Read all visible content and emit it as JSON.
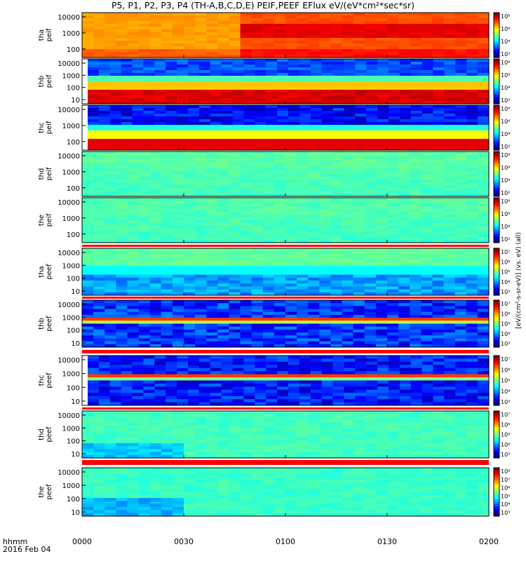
{
  "title": "P5, P1, P2, P3, P4 (TH-A,B,C,D,E) PEIF,PEEF EFlux eV/(eV*cm²*sec*sr)",
  "time_axis": {
    "label_line1": "hhmm",
    "label_line2": "2016 Feb 04",
    "ticks": [
      "0000",
      "0030",
      "0100",
      "0130",
      "0200"
    ]
  },
  "colorbar_caption": "[eV/(cm²-s-sr-eV)] (vs. eV) (all)",
  "chart_data": [
    {
      "type": "heatmap",
      "probe": "tha",
      "product": "peif",
      "ylabel": "tha\npeif",
      "y_ticks": [
        "10000",
        "1000",
        "100"
      ],
      "cbar_ticks": [
        "10⁸",
        "10⁶",
        "10⁴",
        "10²"
      ],
      "colormap_feature": "high flux (yellow-orange) until ~0045, then orange-red band centered near 1000 eV",
      "left_gap": false
    },
    {
      "type": "heatmap",
      "probe": "thb",
      "product": "peif",
      "ylabel": "thb\npeif",
      "y_ticks": [
        "10000",
        "1000",
        "100",
        "10"
      ],
      "cbar_ticks": [
        "10⁸",
        "10⁶",
        "10⁴",
        "10²"
      ],
      "colormap_feature": "blue above 2000 eV, yellow-red band below 1000 eV",
      "left_gap": true
    },
    {
      "type": "heatmap",
      "probe": "thc",
      "product": "peif",
      "ylabel": "thc\npeif",
      "y_ticks": [
        "10000",
        "1000",
        "100"
      ],
      "cbar_ticks": [
        "10⁸",
        "10⁶",
        "10⁴",
        "10²"
      ],
      "colormap_feature": "blue/black above 2000 eV, red below 300 eV",
      "left_gap": true
    },
    {
      "type": "heatmap",
      "probe": "thd",
      "product": "peif",
      "ylabel": "thd\npeif",
      "y_ticks": [
        "10000",
        "1000",
        "100"
      ],
      "cbar_ticks": [
        "10⁸",
        "10⁶",
        "10⁴",
        "10²"
      ],
      "colormap_feature": "uniform green",
      "left_gap": false
    },
    {
      "type": "heatmap",
      "probe": "the",
      "product": "peif",
      "ylabel": "the\npeif",
      "y_ticks": [
        "10000",
        "1000",
        "100"
      ],
      "cbar_ticks": [
        "10⁸",
        "10⁶",
        "10⁴",
        "10²"
      ],
      "colormap_feature": "uniform green",
      "left_gap": false
    },
    {
      "type": "heatmap",
      "probe": "tha",
      "product": "peef",
      "ylabel": "tha\npeef",
      "y_ticks": [
        "10000",
        "1000",
        "100",
        "10"
      ],
      "cbar_ticks": [
        "10⁷",
        "10⁶",
        "10⁵",
        "10⁴",
        "10³"
      ],
      "colormap_feature": "green above 300 eV, blue below",
      "left_gap": false
    },
    {
      "type": "heatmap",
      "probe": "thb",
      "product": "peef",
      "ylabel": "thb\npeef",
      "y_ticks": [
        "10000",
        "1000",
        "100",
        "10"
      ],
      "cbar_ticks": [
        "10⁷",
        "10⁶",
        "10⁵",
        "10⁴",
        "10³"
      ],
      "colormap_feature": "purple/blue with orange-red line near 800 eV",
      "left_gap": false
    },
    {
      "type": "heatmap",
      "probe": "thc",
      "product": "peef",
      "ylabel": "thc\npeef",
      "y_ticks": [
        "10000",
        "1000",
        "100",
        "10"
      ],
      "cbar_ticks": [
        "10⁷",
        "10⁶",
        "10⁵",
        "10⁴",
        "10³"
      ],
      "colormap_feature": "purple/blue with orange-red line near 800 eV",
      "left_gap": true
    },
    {
      "type": "heatmap",
      "probe": "thd",
      "product": "peef",
      "ylabel": "thd\npeef",
      "y_ticks": [
        "10000",
        "1000",
        "100",
        "10"
      ],
      "cbar_ticks": [
        "10⁷",
        "10⁶",
        "10⁵",
        "10⁴",
        "10³"
      ],
      "colormap_feature": "green, blue below 100 eV before 0030",
      "left_gap": false
    },
    {
      "type": "heatmap",
      "probe": "the",
      "product": "peef",
      "ylabel": "the\npeef",
      "y_ticks": [
        "10000",
        "1000",
        "100",
        "10"
      ],
      "cbar_ticks": [
        "10⁸",
        "10⁷",
        "10⁶",
        "10⁵",
        "10⁴",
        "10³"
      ],
      "colormap_feature": "green, blue below 100 eV before 0030",
      "left_gap": false
    }
  ]
}
